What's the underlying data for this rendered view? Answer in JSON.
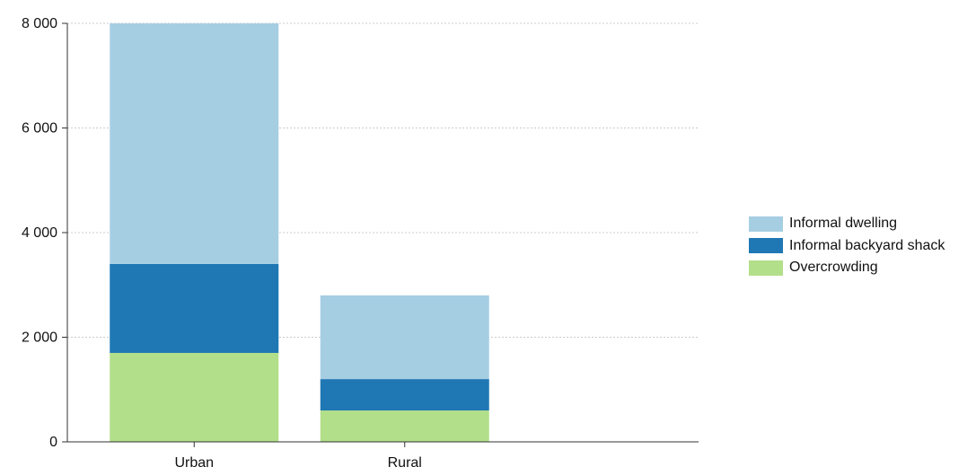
{
  "chart_data": {
    "type": "bar",
    "stacked": true,
    "categories": [
      "Urban",
      "Rural"
    ],
    "series": [
      {
        "name": "Overcrowding",
        "color": "#b2df8a",
        "values": [
          1700,
          600
        ]
      },
      {
        "name": "Informal backyard shack",
        "color": "#1f78b4",
        "values": [
          1700,
          600
        ]
      },
      {
        "name": "Informal dwelling",
        "color": "#a6cee3",
        "values": [
          4600,
          1600
        ]
      }
    ],
    "ylim": [
      0,
      8000
    ],
    "yticks": [
      0,
      2000,
      4000,
      6000,
      8000
    ],
    "ytick_labels": [
      "0",
      "2 000",
      "4 000",
      "6 000",
      "8 000"
    ],
    "grid": true,
    "legend_position": "right",
    "legend": [
      {
        "label": "Informal dwelling",
        "color": "#a6cee3"
      },
      {
        "label": "Informal backyard shack",
        "color": "#1f78b4"
      },
      {
        "label": "Overcrowding",
        "color": "#b2df8a"
      }
    ],
    "title": "",
    "xlabel": "",
    "ylabel": ""
  }
}
